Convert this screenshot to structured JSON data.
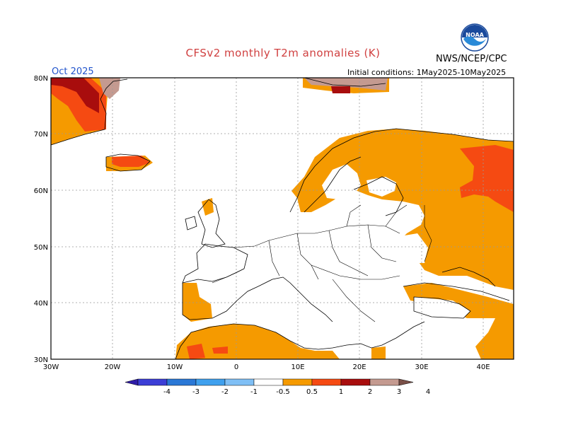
{
  "header": {
    "title": "CFSv2 monthly T2m anomalies (K)",
    "agency": "NWS/NCEP/CPC",
    "month": "Oct 2025",
    "initial_conditions": "Initial conditions: 1May2025-10May2025",
    "logo_text": "NOAA"
  },
  "axes": {
    "lon_labels": [
      "30W",
      "20W",
      "10W",
      "0",
      "10E",
      "20E",
      "30E",
      "40E"
    ],
    "lat_labels": [
      "30N",
      "40N",
      "50N",
      "60N",
      "70N",
      "80N"
    ]
  },
  "legend": {
    "labels": [
      "-4",
      "-3",
      "-2",
      "-1",
      "-0.5",
      "0.5",
      "1",
      "2",
      "3",
      "4"
    ],
    "colors": [
      "#2f1ca8",
      "#3c3ed6",
      "#2a78d6",
      "#3fa0ee",
      "#7fbff5",
      "#ffffff",
      "#f59a00",
      "#f54a12",
      "#a80d0d",
      "#c49a90",
      "#7a5048"
    ]
  },
  "colors": {
    "orange": "#f59a00",
    "red": "#f54a12",
    "darkred": "#a80d0d",
    "rosy": "#c49a90"
  }
}
